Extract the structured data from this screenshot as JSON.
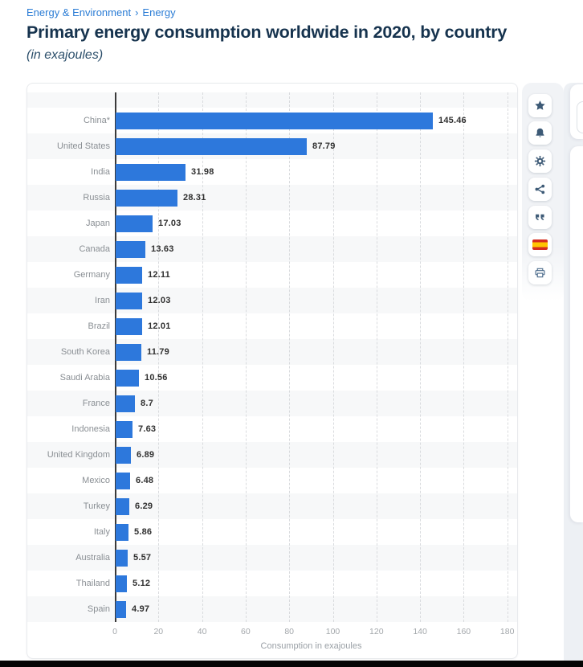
{
  "breadcrumb": {
    "items": [
      "Energy & Environment",
      "Energy"
    ],
    "separator": "›"
  },
  "header": {
    "title": "Primary energy consumption worldwide in 2020, by country",
    "subtitle": "(in exajoules)"
  },
  "toolbar": {
    "buttons": [
      {
        "name": "favorite",
        "icon": "star-icon"
      },
      {
        "name": "alert",
        "icon": "bell-icon"
      },
      {
        "name": "settings",
        "icon": "gear-icon"
      },
      {
        "name": "share",
        "icon": "share-icon"
      },
      {
        "name": "cite",
        "icon": "quote-icon"
      },
      {
        "name": "language-spanish",
        "icon": "spain-flag-icon"
      },
      {
        "name": "print",
        "icon": "printer-icon"
      }
    ]
  },
  "chart_data": {
    "type": "bar",
    "orientation": "horizontal",
    "title": "Primary energy consumption worldwide in 2020, by country",
    "subtitle": "(in exajoules)",
    "categories": [
      "China*",
      "United States",
      "India",
      "Russia",
      "Japan",
      "Canada",
      "Germany",
      "Iran",
      "Brazil",
      "South Korea",
      "Saudi Arabia",
      "France",
      "Indonesia",
      "United Kingdom",
      "Mexico",
      "Turkey",
      "Italy",
      "Australia",
      "Thailand",
      "Spain"
    ],
    "values": [
      145.46,
      87.79,
      31.98,
      28.31,
      17.03,
      13.63,
      12.11,
      12.03,
      12.01,
      11.79,
      10.56,
      8.7,
      7.63,
      6.89,
      6.48,
      6.29,
      5.86,
      5.57,
      5.12,
      4.97
    ],
    "value_labels": [
      "145.46",
      "87.79",
      "31.98",
      "28.31",
      "17.03",
      "13.63",
      "12.11",
      "12.03",
      "12.01",
      "11.79",
      "10.56",
      "8.7",
      "7.63",
      "6.89",
      "6.48",
      "6.29",
      "5.86",
      "5.57",
      "5.12",
      "4.97"
    ],
    "xlabel": "Consumption in exajoules",
    "x_ticks": [
      0,
      20,
      40,
      60,
      80,
      100,
      120,
      140,
      160,
      180
    ],
    "xlim": [
      0,
      180
    ],
    "grid": "vertical-dashed",
    "legend": "none",
    "row_striping": "alternating",
    "bar_color": "#2d78dc",
    "alt_row_color": "#f7f8f9"
  },
  "colors": {
    "link_blue": "#2a7cd5",
    "title_navy": "#16334e",
    "bar_blue": "#2d78dc",
    "icon_navy": "#3d5a76",
    "flag_red": "#d52b1e",
    "flag_yellow": "#ffc400",
    "footer_black": "#050505"
  }
}
